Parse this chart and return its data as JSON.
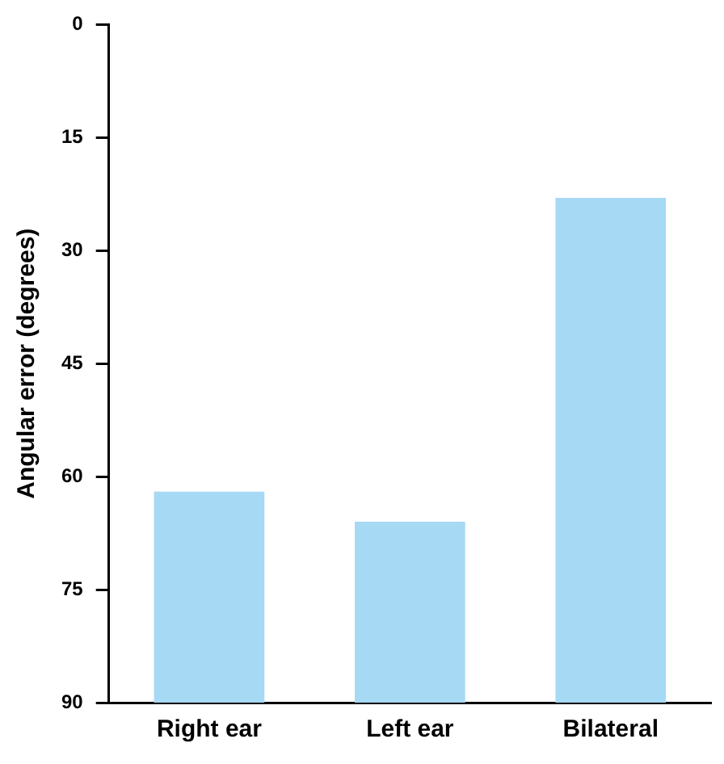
{
  "chart_data": {
    "type": "bar",
    "ylabel": "Angular error (degrees)",
    "categories": [
      "Right ear",
      "Left ear",
      "Bilateral"
    ],
    "base": [
      90,
      90,
      90
    ],
    "values": [
      -28,
      -24,
      -67
    ],
    "color": "#a6d9f4",
    "ylim": [
      90,
      0
    ],
    "yticks": [
      0,
      15,
      30,
      45,
      60,
      75,
      90
    ],
    "grid": false,
    "legend": false
  }
}
